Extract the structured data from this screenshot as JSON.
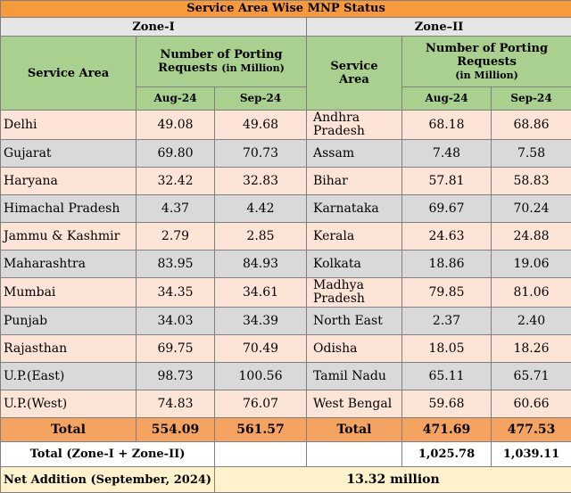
{
  "title": "Service Area Wise MNP Status",
  "zone1": {
    "label": "Zone-I",
    "col_service": "Service Area",
    "col_requests": "Number of Porting Requests",
    "col_unit": "(in Million)",
    "col_aug": "Aug-24",
    "col_sep": "Sep-24",
    "rows": [
      {
        "area": "Delhi",
        "aug": "49.08",
        "sep": "49.68"
      },
      {
        "area": "Gujarat",
        "aug": "69.80",
        "sep": "70.73"
      },
      {
        "area": "Haryana",
        "aug": "32.42",
        "sep": "32.83"
      },
      {
        "area": "Himachal Pradesh",
        "aug": "4.37",
        "sep": "4.42"
      },
      {
        "area": "Jammu & Kashmir",
        "aug": "2.79",
        "sep": "2.85"
      },
      {
        "area": "Maharashtra",
        "aug": "83.95",
        "sep": "84.93"
      },
      {
        "area": "Mumbai",
        "aug": "34.35",
        "sep": "34.61"
      },
      {
        "area": "Punjab",
        "aug": "34.03",
        "sep": "34.39"
      },
      {
        "area": "Rajasthan",
        "aug": "69.75",
        "sep": "70.49"
      },
      {
        "area": "U.P.(East)",
        "aug": "98.73",
        "sep": "100.56"
      },
      {
        "area": "U.P.(West)",
        "aug": "74.83",
        "sep": "76.07"
      }
    ],
    "total_label": "Total",
    "total_aug": "554.09",
    "total_sep": "561.57"
  },
  "zone2": {
    "label": "Zone–II",
    "col_service": "Service Area",
    "col_requests": "Number of Porting Requests",
    "col_unit": "(in Million)",
    "col_aug": "Aug-24",
    "col_sep": "Sep-24",
    "rows": [
      {
        "area": "Andhra Pradesh",
        "aug": "68.18",
        "sep": "68.86"
      },
      {
        "area": "Assam",
        "aug": "7.48",
        "sep": "7.58"
      },
      {
        "area": "Bihar",
        "aug": "57.81",
        "sep": "58.83"
      },
      {
        "area": "Karnataka",
        "aug": "69.67",
        "sep": "70.24"
      },
      {
        "area": "Kerala",
        "aug": "24.63",
        "sep": "24.88"
      },
      {
        "area": "Kolkata",
        "aug": "18.86",
        "sep": "19.06"
      },
      {
        "area": "Madhya Pradesh",
        "aug": "79.85",
        "sep": "81.06"
      },
      {
        "area": "North East",
        "aug": "2.37",
        "sep": "2.40"
      },
      {
        "area": "Odisha",
        "aug": "18.05",
        "sep": "18.26"
      },
      {
        "area": "Tamil Nadu",
        "aug": "65.11",
        "sep": "65.71"
      },
      {
        "area": "West Bengal",
        "aug": "59.68",
        "sep": "60.66"
      }
    ],
    "total_label": "Total",
    "total_aug": "471.69",
    "total_sep": "477.53"
  },
  "grand_total": {
    "label": "Total (Zone-I + Zone-II)",
    "aug": "1,025.78",
    "sep": "1,039.11"
  },
  "net_addition": {
    "label": "Net Addition (September, 2024)",
    "value": "13.32 million"
  },
  "colors": {
    "title_bg": "#f79a3c",
    "zone_bg": "#e7e6e6",
    "header_bg": "#a9d08e",
    "row_odd_bg": "#fce4d6",
    "row_even_bg": "#d9d9d9",
    "total_bg": "#f4a460",
    "net_bg": "#fff2cc"
  }
}
